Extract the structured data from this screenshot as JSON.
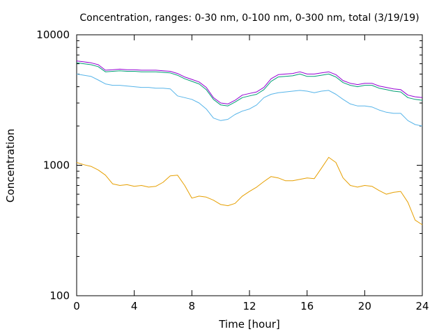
{
  "chart_data": {
    "type": "line",
    "title": "Concentration, ranges: 0-30 nm, 0-100 nm, 0-300 nm, total (3/19/19)",
    "xlabel": "Time [hour]",
    "ylabel": "Concentration",
    "xlim": [
      0,
      24
    ],
    "ylim": [
      100,
      10000
    ],
    "yscale": "log",
    "grid": false,
    "legend": "none",
    "x_ticks": [
      0,
      4,
      8,
      12,
      16,
      20,
      24
    ],
    "y_ticks": [
      100,
      1000,
      10000
    ],
    "x": [
      0,
      0.5,
      1,
      1.5,
      2,
      2.5,
      3,
      3.5,
      4,
      4.5,
      5,
      5.5,
      6,
      6.5,
      7,
      7.5,
      8,
      8.5,
      9,
      9.5,
      10,
      10.5,
      11,
      11.5,
      12,
      12.5,
      13,
      13.5,
      14,
      14.5,
      15,
      15.5,
      16,
      16.5,
      17,
      17.5,
      18,
      18.5,
      19,
      19.5,
      20,
      20.5,
      21,
      21.5,
      22,
      22.5,
      23,
      23.5,
      24
    ],
    "series": [
      {
        "color": "#e69f00",
        "values": [
          1050,
          1010,
          980,
          920,
          840,
          720,
          700,
          710,
          690,
          700,
          680,
          690,
          740,
          830,
          840,
          700,
          560,
          580,
          570,
          540,
          500,
          490,
          510,
          580,
          630,
          680,
          750,
          820,
          800,
          760,
          760,
          780,
          800,
          790,
          950,
          1150,
          1050,
          800,
          700,
          680,
          700,
          690,
          640,
          600,
          620,
          630,
          520,
          380,
          350
        ]
      },
      {
        "color": "#56b4e9",
        "values": [
          5000,
          4900,
          4800,
          4500,
          4200,
          4100,
          4100,
          4050,
          4000,
          3950,
          3950,
          3900,
          3900,
          3850,
          3400,
          3300,
          3200,
          3000,
          2700,
          2300,
          2200,
          2250,
          2450,
          2600,
          2700,
          2900,
          3300,
          3500,
          3600,
          3650,
          3700,
          3750,
          3700,
          3600,
          3700,
          3750,
          3500,
          3200,
          2950,
          2850,
          2850,
          2800,
          2650,
          2550,
          2500,
          2500,
          2200,
          2050,
          2000
        ]
      },
      {
        "color": "#009e73",
        "values": [
          6100,
          6000,
          5900,
          5700,
          5200,
          5250,
          5300,
          5250,
          5250,
          5200,
          5200,
          5200,
          5150,
          5100,
          4900,
          4600,
          4400,
          4200,
          3800,
          3200,
          2900,
          2850,
          3050,
          3300,
          3400,
          3500,
          3800,
          4400,
          4750,
          4800,
          4850,
          5000,
          4800,
          4800,
          4900,
          5000,
          4750,
          4300,
          4100,
          4000,
          4100,
          4100,
          3900,
          3800,
          3700,
          3650,
          3300,
          3200,
          3150
        ]
      },
      {
        "color": "#9400d3",
        "values": [
          6300,
          6200,
          6100,
          5900,
          5350,
          5400,
          5450,
          5400,
          5400,
          5350,
          5350,
          5350,
          5300,
          5250,
          5050,
          4750,
          4550,
          4350,
          3950,
          3300,
          3000,
          2950,
          3150,
          3450,
          3550,
          3650,
          3950,
          4600,
          4950,
          5000,
          5050,
          5200,
          5000,
          5000,
          5100,
          5200,
          4950,
          4450,
          4250,
          4150,
          4250,
          4250,
          4050,
          3950,
          3850,
          3800,
          3450,
          3350,
          3300
        ]
      }
    ]
  }
}
